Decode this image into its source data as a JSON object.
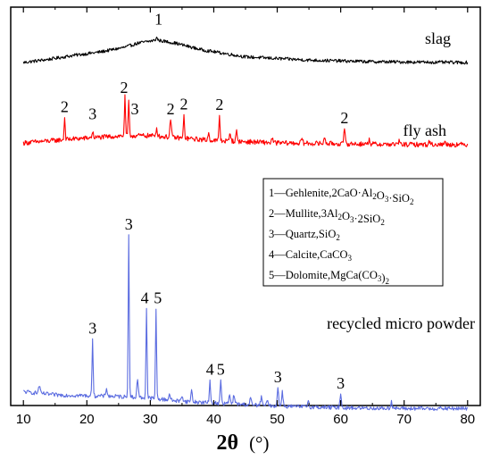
{
  "chart_data": {
    "type": "line",
    "xlabel_symbol": "2θ",
    "xlabel_unit": "(°)",
    "xlim": [
      8,
      82
    ],
    "xticks": [
      10,
      20,
      30,
      40,
      50,
      60,
      70,
      80
    ],
    "x_step": 0.1,
    "series": [
      {
        "name": "slag",
        "color": "#000000",
        "baseline": [
          [
            10,
            46
          ],
          [
            14,
            50
          ],
          [
            18,
            55
          ],
          [
            22,
            59
          ],
          [
            26,
            65
          ],
          [
            28,
            70
          ],
          [
            31,
            74
          ],
          [
            34,
            70
          ],
          [
            38,
            62
          ],
          [
            45,
            53
          ],
          [
            55,
            49
          ],
          [
            65,
            47
          ],
          [
            80,
            46
          ]
        ],
        "noise": 2,
        "peaks": [
          [
            31,
            3
          ]
        ]
      },
      {
        "name": "fly ash",
        "color": "#ff0000",
        "baseline": [
          [
            10,
            46
          ],
          [
            18,
            51
          ],
          [
            22,
            53
          ],
          [
            26,
            55
          ],
          [
            30,
            55
          ],
          [
            35,
            52
          ],
          [
            40,
            49
          ],
          [
            50,
            46
          ],
          [
            60,
            45
          ],
          [
            70,
            44
          ],
          [
            80,
            44
          ]
        ],
        "noise": 3,
        "peaks": [
          [
            16.5,
            28
          ],
          [
            20.9,
            7
          ],
          [
            26.0,
            48
          ],
          [
            26.6,
            42
          ],
          [
            31.0,
            10
          ],
          [
            33.2,
            22
          ],
          [
            35.3,
            28
          ],
          [
            39.2,
            8
          ],
          [
            40.9,
            32
          ],
          [
            42.6,
            10
          ],
          [
            43.6,
            12
          ],
          [
            49.2,
            5
          ],
          [
            53.9,
            6
          ],
          [
            57.5,
            8
          ],
          [
            60.6,
            16
          ],
          [
            64.5,
            6
          ],
          [
            69.2,
            4
          ],
          [
            74.0,
            4
          ],
          [
            76.5,
            4
          ]
        ]
      },
      {
        "name": "recycled micro powder",
        "color": "#5b6ce0",
        "baseline": [
          [
            10,
            31
          ],
          [
            15,
            27
          ],
          [
            20,
            26
          ],
          [
            25,
            25
          ],
          [
            30,
            23
          ],
          [
            35,
            19
          ],
          [
            40,
            17
          ],
          [
            50,
            13
          ],
          [
            60,
            11
          ],
          [
            70,
            10
          ],
          [
            80,
            10
          ]
        ],
        "noise": 2.5,
        "peaks": [
          [
            12.5,
            10
          ],
          [
            20.9,
            73
          ],
          [
            23.1,
            10
          ],
          [
            26.6,
            200
          ],
          [
            28.0,
            23
          ],
          [
            29.4,
            112
          ],
          [
            30.9,
            110
          ],
          [
            33.0,
            8
          ],
          [
            35.0,
            8
          ],
          [
            36.5,
            14
          ],
          [
            39.4,
            30
          ],
          [
            41.1,
            31
          ],
          [
            42.5,
            10
          ],
          [
            43.2,
            12
          ],
          [
            45.8,
            8
          ],
          [
            47.5,
            10
          ],
          [
            48.5,
            8
          ],
          [
            50.1,
            22
          ],
          [
            50.8,
            18
          ],
          [
            54.9,
            8
          ],
          [
            60.0,
            18
          ],
          [
            68.0,
            9
          ]
        ]
      }
    ],
    "series_labels": [
      {
        "text": "slag"
      },
      {
        "text": "fly ash"
      },
      {
        "text": "recycled micro powder"
      }
    ],
    "peak_labels": [
      {
        "text": "1",
        "x": 31.3,
        "series": 0
      },
      {
        "text": "2",
        "x": 16.5,
        "series": 1
      },
      {
        "text": "3",
        "x": 20.9,
        "series": 1
      },
      {
        "text": "2",
        "x": 26.0,
        "series": 1
      },
      {
        "text": "3",
        "x": 27.0,
        "series": 1
      },
      {
        "text": "2",
        "x": 33.2,
        "series": 1
      },
      {
        "text": "2",
        "x": 35.3,
        "series": 1
      },
      {
        "text": "2",
        "x": 40.9,
        "series": 1
      },
      {
        "text": "2",
        "x": 60.6,
        "series": 1
      },
      {
        "text": "3",
        "x": 26.6,
        "series": 2
      },
      {
        "text": "4",
        "x": 29.4,
        "series": 2
      },
      {
        "text": "5",
        "x": 30.9,
        "series": 2
      },
      {
        "text": "3",
        "x": 20.9,
        "series": 2
      },
      {
        "text": "4",
        "x": 39.4,
        "series": 2
      },
      {
        "text": "5",
        "x": 41.1,
        "series": 2
      },
      {
        "text": "3",
        "x": 50.1,
        "series": 2
      },
      {
        "text": "3",
        "x": 60.0,
        "series": 2
      }
    ],
    "legend": [
      {
        "num": "1",
        "name": "Gehlenite",
        "formula": [
          [
            "2CaO·Al",
            false
          ],
          [
            "2",
            true
          ],
          [
            "O",
            false
          ],
          [
            "3",
            true
          ],
          [
            "·SiO",
            false
          ],
          [
            "2",
            true
          ]
        ]
      },
      {
        "num": "2",
        "name": "Mullite",
        "formula": [
          [
            "3Al",
            false
          ],
          [
            "2",
            true
          ],
          [
            "O",
            false
          ],
          [
            "3",
            true
          ],
          [
            "·2SiO",
            false
          ],
          [
            "2",
            true
          ]
        ]
      },
      {
        "num": "3",
        "name": "Quartz",
        "formula": [
          [
            "SiO",
            false
          ],
          [
            "2",
            true
          ]
        ]
      },
      {
        "num": "4",
        "name": "Calcite",
        "formula": [
          [
            "CaCO",
            false
          ],
          [
            "3",
            true
          ]
        ]
      },
      {
        "num": "5",
        "name": "Dolomite",
        "formula": [
          [
            "MgCa(CO",
            false
          ],
          [
            "3",
            true
          ],
          [
            ")",
            false
          ],
          [
            "2",
            true
          ]
        ]
      }
    ]
  }
}
